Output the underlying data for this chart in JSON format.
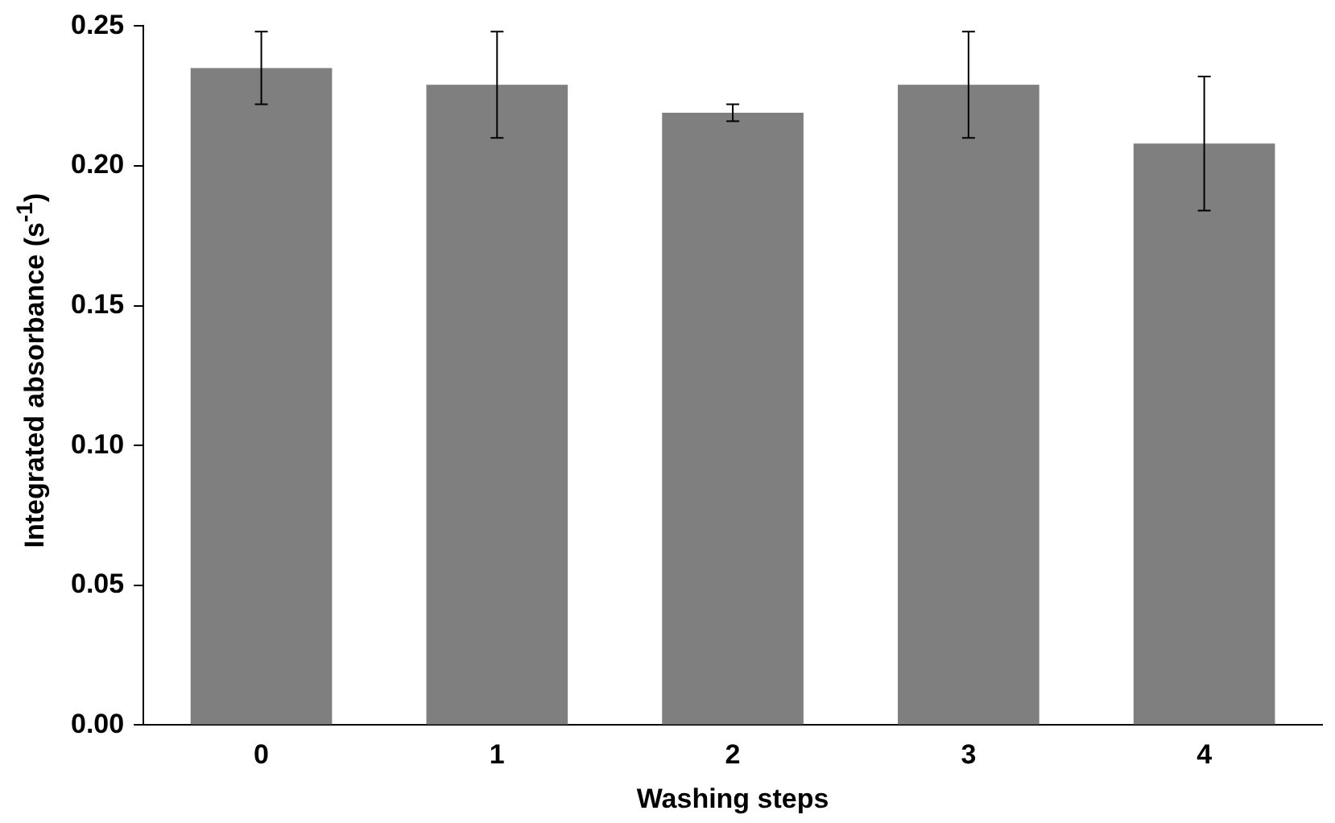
{
  "chart_data": {
    "type": "bar",
    "xlabel": "Washing steps",
    "ylabel": "Integrated absorbance (s$^{-1}$)",
    "categories": [
      "0",
      "1",
      "2",
      "3",
      "4"
    ],
    "values": [
      0.235,
      0.229,
      0.219,
      0.229,
      0.208
    ],
    "errors": [
      0.013,
      0.019,
      0.003,
      0.019,
      0.024
    ],
    "color": "#7f7f7f",
    "ylim": [
      0,
      0.25
    ],
    "yticks": [
      {
        "value": 0,
        "label": "0.00"
      },
      {
        "value": 0.05,
        "label": "0.05"
      },
      {
        "value": 0.1,
        "label": "0.10"
      },
      {
        "value": 0.15,
        "label": "0.15"
      },
      {
        "value": 0.2,
        "label": "0.20"
      },
      {
        "value": 0.25,
        "label": "0.25"
      }
    ],
    "grid": false,
    "legend": false
  }
}
